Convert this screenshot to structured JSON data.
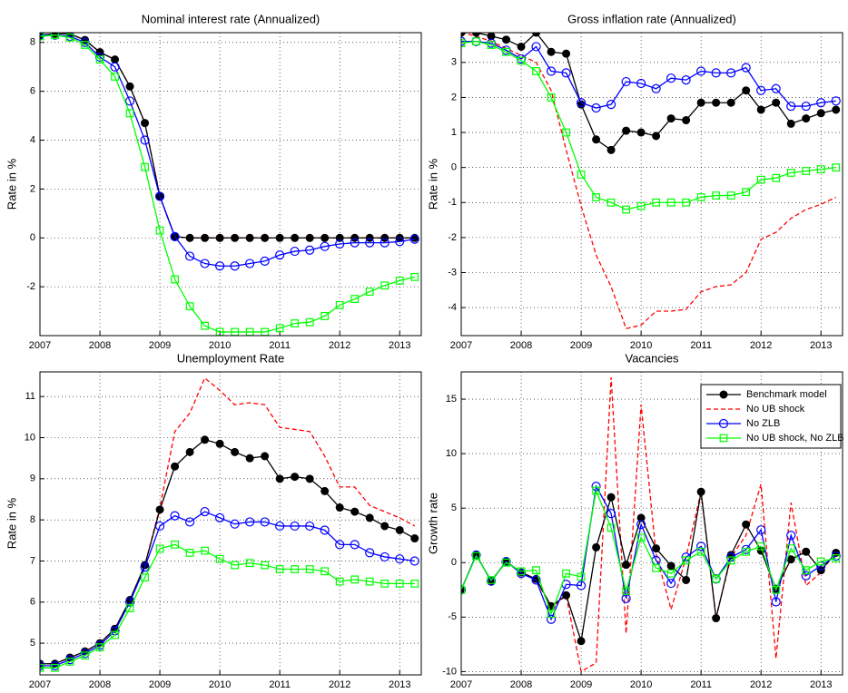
{
  "chart_data": [
    {
      "type": "line",
      "title": "Nominal interest rate  (Annualized)",
      "ylabel": "Rate in %",
      "grid": true,
      "xlim": [
        2007,
        2013.36
      ],
      "xticks": [
        2007,
        2008,
        2009,
        2010,
        2011,
        2012,
        2013
      ],
      "ylim": [
        -4,
        8.4
      ],
      "yticks": [
        -2,
        0,
        2,
        4,
        6,
        8
      ],
      "x": [
        2007,
        2007.25,
        2007.5,
        2007.75,
        2008,
        2008.25,
        2008.5,
        2008.75,
        2009,
        2009.25,
        2009.5,
        2009.75,
        2010,
        2010.25,
        2010.5,
        2010.75,
        2011,
        2011.25,
        2011.5,
        2011.75,
        2012,
        2012.25,
        2012.5,
        2012.75,
        2013,
        2013.25
      ],
      "series": [
        {
          "color": "#ff0000",
          "linestyle": "dashed",
          "marker": "none",
          "values": [
            8.3,
            8.35,
            8.35,
            8.1,
            7.6,
            7.3,
            6.2,
            4.7,
            1.7,
            0.05,
            0,
            0,
            0,
            0,
            0,
            0,
            0,
            0,
            0,
            0,
            0,
            0,
            0,
            0,
            0,
            0
          ]
        },
        {
          "color": "#000000",
          "linestyle": "solid",
          "marker": "filled-circle",
          "values": [
            8.3,
            8.35,
            8.35,
            8.1,
            7.6,
            7.3,
            6.2,
            4.7,
            1.7,
            0.05,
            0,
            0,
            0,
            0,
            0,
            0,
            0,
            0,
            0,
            0,
            0,
            0,
            0,
            0,
            0,
            0
          ]
        },
        {
          "color": "#0000ff",
          "linestyle": "solid",
          "marker": "circle",
          "values": [
            8.3,
            8.3,
            8.25,
            8.0,
            7.4,
            7.0,
            5.6,
            4.0,
            1.7,
            0.05,
            -0.75,
            -1.05,
            -1.15,
            -1.15,
            -1.05,
            -0.95,
            -0.7,
            -0.55,
            -0.5,
            -0.35,
            -0.25,
            -0.2,
            -0.2,
            -0.2,
            -0.15,
            -0.05
          ]
        },
        {
          "color": "#00ff00",
          "linestyle": "solid",
          "marker": "square",
          "values": [
            8.25,
            8.3,
            8.2,
            7.9,
            7.3,
            6.6,
            5.1,
            2.9,
            0.3,
            -1.7,
            -2.8,
            -3.6,
            -3.85,
            -3.85,
            -3.85,
            -3.85,
            -3.7,
            -3.5,
            -3.45,
            -3.2,
            -2.75,
            -2.5,
            -2.2,
            -1.95,
            -1.75,
            -1.6
          ]
        }
      ]
    },
    {
      "type": "line",
      "title": "Gross inflation rate (Annualized)",
      "ylabel": "Rate in %",
      "grid": true,
      "xlim": [
        2007,
        2013.36
      ],
      "xticks": [
        2007,
        2008,
        2009,
        2010,
        2011,
        2012,
        2013
      ],
      "ylim": [
        -4.8,
        3.85
      ],
      "yticks": [
        -4,
        -3,
        -2,
        -1,
        0,
        1,
        2,
        3
      ],
      "x": [
        2007,
        2007.25,
        2007.5,
        2007.75,
        2008,
        2008.25,
        2008.5,
        2008.75,
        2009,
        2009.25,
        2009.5,
        2009.75,
        2010,
        2010.25,
        2010.5,
        2010.75,
        2011,
        2011.25,
        2011.5,
        2011.75,
        2012,
        2012.25,
        2012.5,
        2012.75,
        2013,
        2013.25
      ],
      "series": [
        {
          "color": "#ff0000",
          "linestyle": "dashed",
          "marker": "none",
          "values": [
            3.85,
            3.75,
            3.6,
            3.4,
            3.2,
            3.0,
            2.2,
            0.5,
            -1.1,
            -2.5,
            -3.4,
            -4.6,
            -4.5,
            -4.1,
            -4.1,
            -4.05,
            -3.55,
            -3.4,
            -3.35,
            -3.0,
            -2.05,
            -1.85,
            -1.45,
            -1.2,
            -1.05,
            -0.85
          ]
        },
        {
          "color": "#000000",
          "linestyle": "solid",
          "marker": "filled-circle",
          "values": [
            3.85,
            3.85,
            3.75,
            3.65,
            3.45,
            3.85,
            3.3,
            3.25,
            1.8,
            0.8,
            0.5,
            1.05,
            1.0,
            0.9,
            1.4,
            1.35,
            1.85,
            1.85,
            1.85,
            2.2,
            1.65,
            1.85,
            1.25,
            1.4,
            1.55,
            1.65
          ]
        },
        {
          "color": "#0000ff",
          "linestyle": "solid",
          "marker": "circle",
          "values": [
            3.6,
            3.6,
            3.55,
            3.35,
            3.1,
            3.45,
            2.75,
            2.7,
            1.85,
            1.7,
            1.8,
            2.45,
            2.4,
            2.25,
            2.55,
            2.5,
            2.75,
            2.7,
            2.7,
            2.85,
            2.2,
            2.25,
            1.75,
            1.75,
            1.85,
            1.9
          ]
        },
        {
          "color": "#00ff00",
          "linestyle": "solid",
          "marker": "square",
          "values": [
            3.55,
            3.6,
            3.5,
            3.3,
            3.05,
            2.75,
            2.0,
            1.0,
            -0.2,
            -0.85,
            -1.0,
            -1.2,
            -1.1,
            -1.0,
            -1.0,
            -1.0,
            -0.85,
            -0.8,
            -0.8,
            -0.7,
            -0.35,
            -0.3,
            -0.15,
            -0.1,
            -0.05,
            0.0
          ]
        }
      ]
    },
    {
      "type": "line",
      "title": "Unemployment Rate",
      "ylabel": "Rate in %",
      "grid": true,
      "xlim": [
        2007,
        2013.36
      ],
      "xticks": [
        2007,
        2008,
        2009,
        2010,
        2011,
        2012,
        2013
      ],
      "ylim": [
        4.23,
        11.6
      ],
      "yticks": [
        5,
        6,
        7,
        8,
        9,
        10,
        11
      ],
      "x": [
        2007,
        2007.25,
        2007.5,
        2007.75,
        2008,
        2008.25,
        2008.5,
        2008.75,
        2009,
        2009.25,
        2009.5,
        2009.75,
        2010,
        2010.25,
        2010.5,
        2010.75,
        2011,
        2011.25,
        2011.5,
        2011.75,
        2012,
        2012.25,
        2012.5,
        2012.75,
        2013,
        2013.25
      ],
      "series": [
        {
          "color": "#ff0000",
          "linestyle": "dashed",
          "marker": "none",
          "values": [
            4.5,
            4.5,
            4.65,
            4.8,
            5.0,
            5.35,
            6.05,
            6.9,
            8.3,
            10.15,
            10.6,
            11.45,
            11.15,
            10.8,
            10.85,
            10.8,
            10.25,
            10.2,
            10.15,
            9.55,
            8.8,
            8.8,
            8.35,
            8.2,
            8.05,
            7.85
          ]
        },
        {
          "color": "#000000",
          "linestyle": "solid",
          "marker": "filled-circle",
          "values": [
            4.5,
            4.5,
            4.65,
            4.8,
            5.0,
            5.35,
            6.05,
            6.9,
            8.25,
            9.3,
            9.65,
            9.95,
            9.85,
            9.65,
            9.5,
            9.55,
            9.0,
            9.05,
            9.0,
            8.7,
            8.3,
            8.2,
            8.05,
            7.85,
            7.75,
            7.55
          ]
        },
        {
          "color": "#0000ff",
          "linestyle": "solid",
          "marker": "circle",
          "values": [
            4.45,
            4.45,
            4.6,
            4.75,
            4.95,
            5.3,
            6.0,
            6.85,
            7.85,
            8.1,
            7.95,
            8.2,
            8.05,
            7.9,
            7.95,
            7.95,
            7.85,
            7.85,
            7.85,
            7.75,
            7.4,
            7.4,
            7.2,
            7.1,
            7.05,
            7.0
          ]
        },
        {
          "color": "#00ff00",
          "linestyle": "solid",
          "marker": "square",
          "values": [
            4.4,
            4.4,
            4.55,
            4.7,
            4.9,
            5.2,
            5.85,
            6.6,
            7.3,
            7.4,
            7.2,
            7.25,
            7.05,
            6.9,
            6.95,
            6.9,
            6.8,
            6.8,
            6.8,
            6.75,
            6.5,
            6.55,
            6.5,
            6.45,
            6.45,
            6.45
          ]
        }
      ]
    },
    {
      "type": "line",
      "title": "Vacancies",
      "ylabel": "Growth rate",
      "grid": true,
      "legend": "northeast",
      "xlim": [
        2007,
        2013.36
      ],
      "xticks": [
        2007,
        2008,
        2009,
        2010,
        2011,
        2012,
        2013
      ],
      "ylim": [
        -10.3,
        17.5
      ],
      "yticks": [
        -10,
        -5,
        0,
        5,
        10,
        15
      ],
      "x": [
        2007,
        2007.25,
        2007.5,
        2007.75,
        2008,
        2008.25,
        2008.5,
        2008.75,
        2009,
        2009.25,
        2009.5,
        2009.75,
        2010,
        2010.25,
        2010.5,
        2010.75,
        2011,
        2011.25,
        2011.5,
        2011.75,
        2012,
        2012.25,
        2012.5,
        2012.75,
        2013,
        2013.25
      ],
      "series": [
        {
          "name": "No UB shock",
          "color": "#ff0000",
          "linestyle": "dashed",
          "marker": "none",
          "values": [
            -2.5,
            0.7,
            -1.7,
            0.1,
            -0.9,
            -1.5,
            -4.2,
            -3.0,
            -10.0,
            -9.2,
            17.0,
            -6.5,
            14.5,
            0.8,
            -4.3,
            0.5,
            6.5,
            -5.0,
            0.5,
            2.5,
            7.2,
            -8.8,
            5.5,
            -2.1,
            -0.9,
            1.0
          ]
        },
        {
          "name": "Benchmark model",
          "color": "#000000",
          "linestyle": "solid",
          "marker": "filled-circle",
          "values": [
            -2.5,
            0.7,
            -1.7,
            0.1,
            -0.9,
            -1.5,
            -4.0,
            -3.0,
            -7.2,
            1.4,
            6.0,
            -0.2,
            4.1,
            1.3,
            -0.3,
            -1.6,
            6.5,
            -5.1,
            0.7,
            3.5,
            1.1,
            -2.4,
            0.3,
            1.0,
            -0.7,
            0.9
          ]
        },
        {
          "name": "No ZLB",
          "color": "#0000ff",
          "linestyle": "solid",
          "marker": "circle",
          "values": [
            -2.5,
            0.7,
            -1.7,
            0.1,
            -1.0,
            -1.6,
            -5.2,
            -2.0,
            -2.1,
            7.0,
            4.5,
            -3.3,
            3.5,
            0.2,
            -1.9,
            0.5,
            1.5,
            -1.5,
            0.5,
            1.2,
            3.0,
            -3.6,
            2.5,
            -1.2,
            -0.3,
            0.6
          ]
        },
        {
          "name": "No UB shock, No ZLB",
          "color": "#00ff00",
          "linestyle": "solid",
          "marker": "square",
          "values": [
            -2.5,
            0.6,
            -1.6,
            0.0,
            -0.8,
            -0.7,
            -4.7,
            -1.0,
            -1.3,
            6.6,
            3.2,
            -2.6,
            2.3,
            -0.5,
            -1.0,
            0.2,
            1.0,
            -1.5,
            0.2,
            1.0,
            1.5,
            -2.5,
            1.3,
            -0.7,
            0.1,
            0.4
          ]
        }
      ]
    }
  ]
}
